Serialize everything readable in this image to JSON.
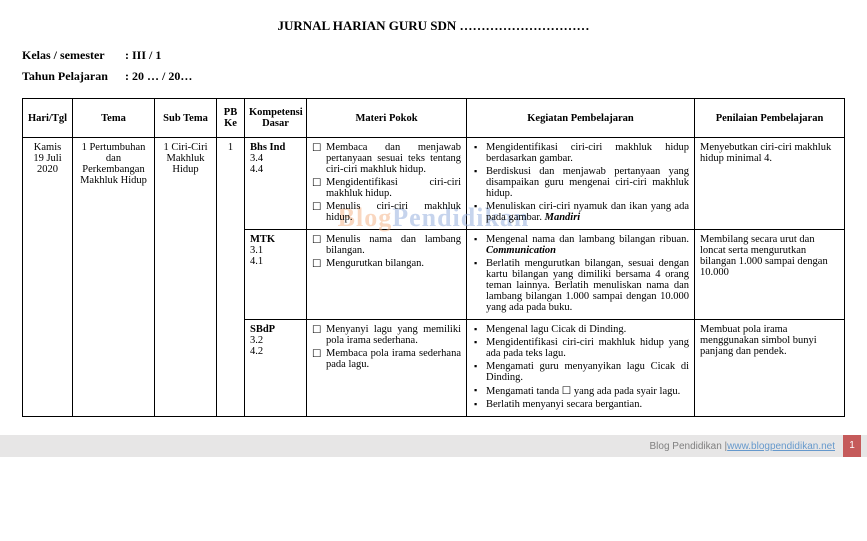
{
  "title_prefix": "JURNAL HARIAN GURU SDN",
  "title_dots": "…………………………",
  "meta": {
    "kelas_label": "Kelas / semester",
    "kelas_value": ": III / 1",
    "tahun_label": "Tahun Pelajaran",
    "tahun_value": ": 20 … / 20…"
  },
  "headers": {
    "hari": "Hari/Tgl",
    "tema": "Tema",
    "subtema": "Sub Tema",
    "pb": "PB Ke",
    "kd": "Kompetensi Dasar",
    "materi": "Materi Pokok",
    "kegiatan": "Kegiatan Pembelajaran",
    "penilaian": "Penilaian Pembelajaran"
  },
  "row": {
    "hari": "Kamis 19 Juli 2020",
    "tema": "1 Pertumbuhan dan Perkembangan Makhluk Hidup",
    "subtema": "1 Ciri-Ciri Makhluk Hidup",
    "pb": "1"
  },
  "kd": {
    "bhs": {
      "name": "Bhs Ind",
      "c1": "3.4",
      "c2": "4.4"
    },
    "mtk": {
      "name": "MTK",
      "c1": "3.1",
      "c2": "4.1"
    },
    "sbdp": {
      "name": "SBdP",
      "c1": "3.2",
      "c2": "4.2"
    }
  },
  "materi": {
    "bhs": [
      "Membaca dan menjawab pertanyaan sesuai teks tentang ciri-ciri makhluk hidup.",
      "Mengidentifikasi ciri-ciri makhluk hidup.",
      "Menulis ciri-ciri makhluk hidup."
    ],
    "mtk": [
      "Menulis nama dan lambang bilangan.",
      "Mengurutkan bilangan."
    ],
    "sbdp": [
      "Menyanyi lagu yang memiliki pola irama sederhana.",
      "Membaca pola irama sederhana pada lagu."
    ]
  },
  "kegiatan": {
    "bhs": [
      "Mengidentifikasi ciri-ciri makhluk hidup berdasarkan gambar.",
      "Berdiskusi dan menjawab pertanyaan yang disampaikan guru mengenai ciri-ciri makhluk hidup.",
      "Menuliskan ciri-ciri nyamuk dan ikan yang ada pada gambar. <b><i>Mandiri</i></b>"
    ],
    "mtk": [
      "Mengenal nama dan lambang bilangan ribuan. <b><i>Communication</i></b>",
      "Berlatih mengurutkan bilangan, sesuai dengan kartu bilangan yang dimiliki bersama 4 orang teman lainnya. Berlatih menuliskan nama dan lambang bilangan 1.000 sampai dengan 10.000 yang ada pada buku."
    ],
    "sbdp": [
      "Mengenal lagu Cicak di Dinding.",
      "Mengidentifikasi ciri-ciri makhluk hidup yang ada pada teks lagu.",
      "Mengamati guru menyanyikan lagu Cicak di Dinding.",
      "Mengamati tanda ☐ yang ada pada syair lagu.",
      "Berlatih menyanyi secara bergantian."
    ]
  },
  "penilaian": {
    "bhs": "Menyebutkan ciri-ciri makhluk hidup minimal 4.",
    "mtk": "Membilang secara urut dan loncat serta mengurutkan bilangan 1.000 sampai dengan 10.000",
    "sbdp": "Membuat pola irama menggunakan simbol bunyi panjang dan pendek."
  },
  "watermark": {
    "a": "Blog",
    "b": "Pendidikan"
  },
  "footer": {
    "text": "Blog Pendidikan | ",
    "url": "www.blogpendidikan.net",
    "page": "1"
  },
  "col_widths": [
    "50",
    "82",
    "62",
    "28",
    "62",
    "160",
    "228",
    "150"
  ]
}
